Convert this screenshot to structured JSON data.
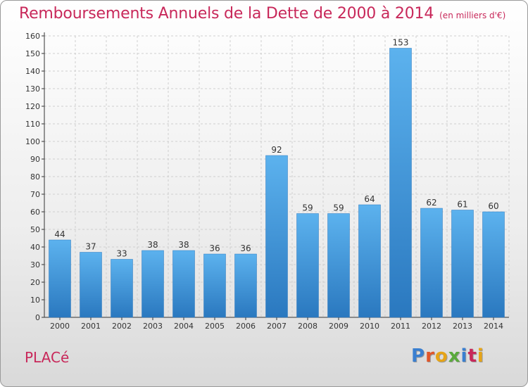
{
  "title": "Remboursements Annuels de la Dette de 2000 à 2014",
  "subtitle": "(en milliers d'€)",
  "commune": "PLACé",
  "logo": {
    "text": "Proxiti",
    "letter_colors": [
      "#3a7fd0",
      "#e0562a",
      "#e6a417",
      "#5aaa3c",
      "#3a7fd0",
      "#c8285a",
      "#e6a417"
    ]
  },
  "colors": {
    "bar": "#4a9fe0",
    "bar_dark": "#2d7ac0",
    "title": "#c8285a"
  },
  "chart_data": {
    "type": "bar",
    "categories": [
      "2000",
      "2001",
      "2002",
      "2003",
      "2004",
      "2005",
      "2006",
      "2007",
      "2008",
      "2009",
      "2010",
      "2011",
      "2012",
      "2013",
      "2014"
    ],
    "values": [
      44,
      37,
      33,
      38,
      38,
      36,
      36,
      92,
      59,
      59,
      64,
      153,
      62,
      61,
      60
    ],
    "data_labels": [
      "44",
      "37",
      "33",
      "38",
      "38",
      "36",
      "36",
      "92",
      "59",
      "59",
      "64",
      "153",
      "62",
      "61",
      "60"
    ],
    "yticks": [
      0,
      10,
      20,
      30,
      40,
      50,
      60,
      70,
      80,
      90,
      100,
      110,
      120,
      130,
      140,
      150,
      160
    ],
    "ylim": [
      0,
      160
    ],
    "grid": true
  }
}
